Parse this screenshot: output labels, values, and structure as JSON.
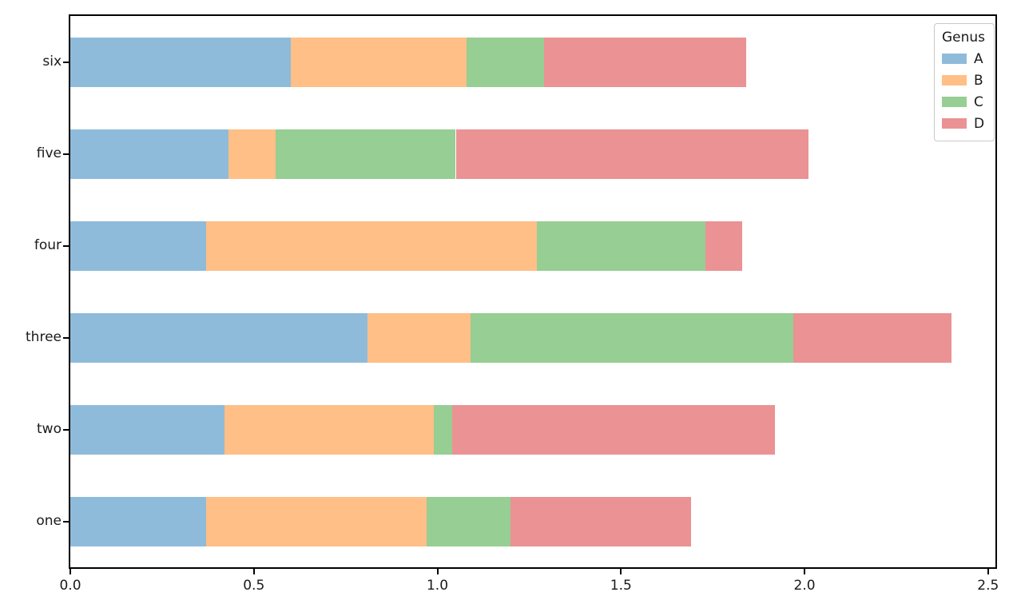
{
  "chart_data": {
    "type": "bar",
    "orientation": "horizontal",
    "stacked": true,
    "title": "",
    "xlabel": "",
    "ylabel": "",
    "grid": false,
    "xlim": [
      0,
      2.52
    ],
    "x_ticks": [
      "0.0",
      "0.5",
      "1.0",
      "1.5",
      "2.0",
      "2.5"
    ],
    "x_tick_values": [
      0,
      0.5,
      1.0,
      1.5,
      2.0,
      2.5
    ],
    "categories_bottom_to_top": [
      "one",
      "two",
      "three",
      "four",
      "five",
      "six"
    ],
    "series": [
      {
        "name": "A",
        "color": "#8fbbdb",
        "values": [
          0.37,
          0.42,
          0.81,
          0.37,
          0.43,
          0.6
        ]
      },
      {
        "name": "B",
        "color": "#ffbf86",
        "values": [
          0.6,
          0.57,
          0.28,
          0.9,
          0.13,
          0.48
        ]
      },
      {
        "name": "C",
        "color": "#96ce93",
        "values": [
          0.23,
          0.05,
          0.88,
          0.46,
          0.49,
          0.21
        ]
      },
      {
        "name": "D",
        "color": "#ea9294",
        "values": [
          0.49,
          0.88,
          0.43,
          0.1,
          0.96,
          0.55
        ]
      }
    ],
    "legend": {
      "title": "Genus",
      "position": "upper right",
      "entries": [
        "A",
        "B",
        "C",
        "D"
      ]
    }
  }
}
